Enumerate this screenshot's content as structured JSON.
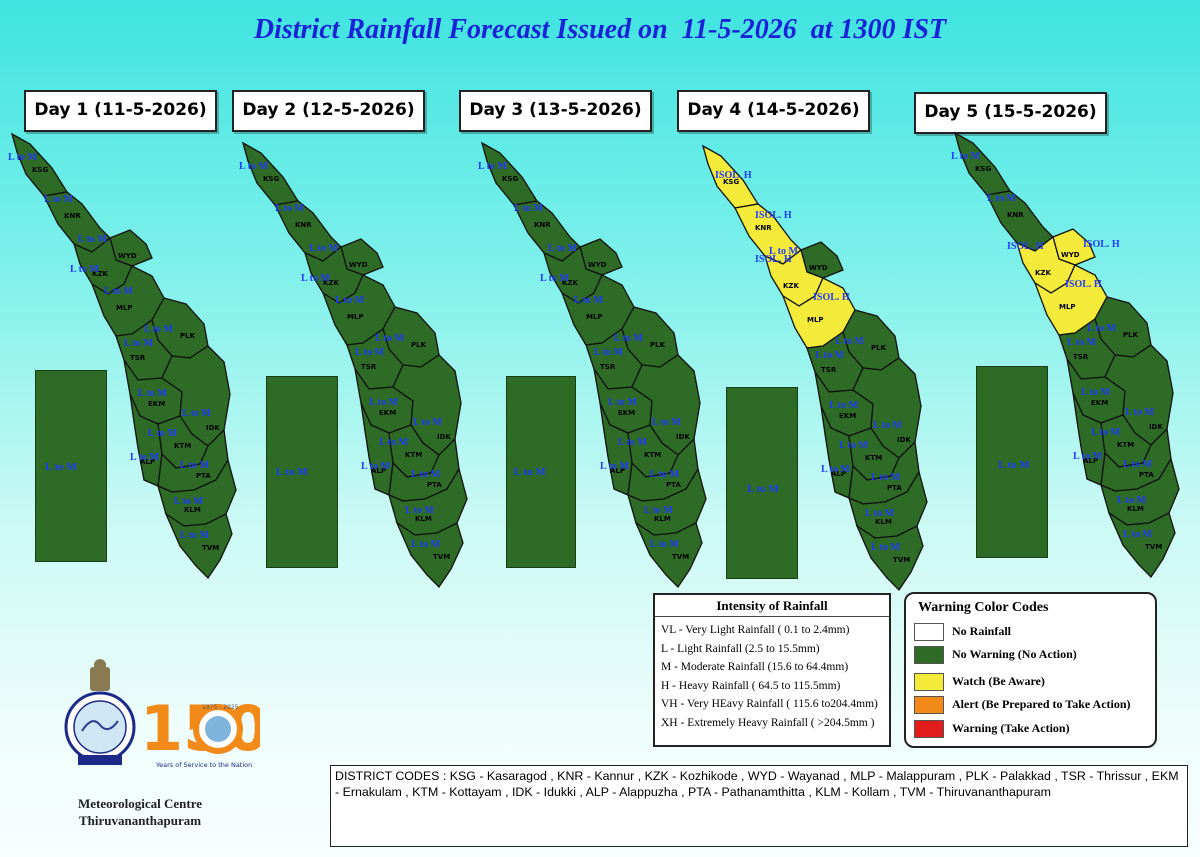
{
  "title": "District Rainfall Forecast Issued on  11-5-2026  at 1300 IST",
  "days": [
    {
      "label": "Day 1 (11-5-2026)",
      "rect_label": "L to M"
    },
    {
      "label": "Day 2 (12-5-2026)",
      "rect_label": "L to M"
    },
    {
      "label": "Day 3 (13-5-2026)",
      "rect_label": "L to M"
    },
    {
      "label": "Day 4 (14-5-2026)",
      "rect_label": "L to M"
    },
    {
      "label": "Day 5 (15-5-2026)",
      "rect_label": "L to M"
    }
  ],
  "district_codes": [
    "KSG",
    "KNR",
    "WYD",
    "KZK",
    "MLP",
    "PLK",
    "TSR",
    "EKM",
    "IDK",
    "ALP",
    "KTM",
    "PTA",
    "KLM",
    "TVM"
  ],
  "forecasts": {
    "day1": {
      "KSG": "L to M",
      "KNR": "L to M",
      "WYD": "L to M",
      "KZK": "L to M",
      "MLP": "L to M",
      "PLK": "L to M",
      "TSR": "L to M",
      "EKM": "L to M",
      "IDK": "L to M",
      "ALP": "L to M",
      "KTM": "L to M",
      "PTA": "L to M",
      "KLM": "L to M",
      "TVM": "L to M"
    },
    "day2": {
      "KSG": "L to M",
      "KNR": "L to M",
      "WYD": "L to M",
      "KZK": "L to M",
      "MLP": "L to M",
      "PLK": "L to M",
      "TSR": "L to M",
      "EKM": "L to M",
      "IDK": "L to M",
      "ALP": "L to M",
      "KTM": "L to M",
      "PTA": "L to M",
      "KLM": "L to M",
      "TVM": "L to M"
    },
    "day3": {
      "KSG": "L to M",
      "KNR": "L to M",
      "WYD": "L to M",
      "KZK": "L to M",
      "MLP": "L to M",
      "PLK": "L to M",
      "TSR": "L to M",
      "EKM": "L to M",
      "IDK": "L to M",
      "ALP": "L to M",
      "KTM": "L to M",
      "PTA": "L to M",
      "KLM": "L to M",
      "TVM": "L to M"
    },
    "day4": {
      "KSG": "ISOL. H",
      "KNR": "ISOL. H",
      "WYD": "L to M",
      "KZK": "ISOL. H",
      "MLP": "ISOL. H",
      "PLK": "L to M",
      "TSR": "L to M",
      "EKM": "L to M",
      "IDK": "L to M",
      "ALP": "L to M",
      "KTM": "L to M",
      "PTA": "L to M",
      "KLM": "L to M",
      "TVM": "L to M"
    },
    "day5": {
      "KSG": "L to M",
      "KNR": "L to M",
      "WYD": "ISOL. H",
      "KZK": "ISOL. H",
      "MLP": "ISOL. H",
      "PLK": "L to M",
      "TSR": "L to M",
      "EKM": "L to M",
      "IDK": "L to M",
      "ALP": "L to M",
      "KTM": "L to M",
      "PTA": "L to M",
      "KLM": "L to M",
      "TVM": "L to M"
    }
  },
  "warnings": {
    "day1": {
      "KSG": "green",
      "KNR": "green",
      "WYD": "green",
      "KZK": "green",
      "MLP": "green",
      "PLK": "green",
      "TSR": "green",
      "EKM": "green",
      "IDK": "green",
      "ALP": "green",
      "KTM": "green",
      "PTA": "green",
      "KLM": "green",
      "TVM": "green"
    },
    "day2": {
      "KSG": "green",
      "KNR": "green",
      "WYD": "green",
      "KZK": "green",
      "MLP": "green",
      "PLK": "green",
      "TSR": "green",
      "EKM": "green",
      "IDK": "green",
      "ALP": "green",
      "KTM": "green",
      "PTA": "green",
      "KLM": "green",
      "TVM": "green"
    },
    "day3": {
      "KSG": "green",
      "KNR": "green",
      "WYD": "green",
      "KZK": "green",
      "MLP": "green",
      "PLK": "green",
      "TSR": "green",
      "EKM": "green",
      "IDK": "green",
      "ALP": "green",
      "KTM": "green",
      "PTA": "green",
      "KLM": "green",
      "TVM": "green"
    },
    "day4": {
      "KSG": "yellow",
      "KNR": "yellow",
      "WYD": "green",
      "KZK": "yellow",
      "MLP": "yellow",
      "PLK": "green",
      "TSR": "green",
      "EKM": "green",
      "IDK": "green",
      "ALP": "green",
      "KTM": "green",
      "PTA": "green",
      "KLM": "green",
      "TVM": "green"
    },
    "day5": {
      "KSG": "green",
      "KNR": "green",
      "WYD": "yellow",
      "KZK": "yellow",
      "MLP": "yellow",
      "PLK": "green",
      "TSR": "green",
      "EKM": "green",
      "IDK": "green",
      "ALP": "green",
      "KTM": "green",
      "PTA": "green",
      "KLM": "green",
      "TVM": "green"
    }
  },
  "colors": {
    "green": "#2e6b26",
    "yellow": "#f4ea3a",
    "white": "#ffffff",
    "orange": "#f28a1a",
    "red": "#e21b1b",
    "title": "#1a22d8",
    "label": "#1f3bff"
  },
  "intensity": {
    "title": "Intensity of Rainfall",
    "items": [
      "VL - Very Light Rainfall ( 0.1 to 2.4mm)",
      "L  - Light Rainfall (2.5 to 15.5mm)",
      "M  - Moderate Rainfall (15.6 to 64.4mm)",
      "H  - Heavy Rainfall ( 64.5 to 115.5mm)",
      "VH - Very HEavy Rainfall ( 115.6 to204.4mm)",
      "XH - Extremely Heavy Rainfall ( >204.5mm )"
    ]
  },
  "warning_codes": {
    "title": "Warning Color Codes",
    "items": [
      {
        "label": "No Rainfall",
        "color": "#ffffff"
      },
      {
        "label": "No Warning (No Action)",
        "color": "#2e6b26"
      },
      {
        "label": "Watch (Be Aware)",
        "color": "#f4ea3a"
      },
      {
        "label": "Alert (Be Prepared to Take Action)",
        "color": "#f28a1a"
      },
      {
        "label": "Warning (Take Action)",
        "color": "#e21b1b"
      }
    ]
  },
  "district_code_legend": "DISTRICT CODES : KSG - Kasaragod , KNR - Kannur , KZK - Kozhikode , WYD - Wayanad , MLP - Malappuram , PLK - Palakkad , TSR - Thrissur , EKM - Ernakulam , KTM - Kottayam , IDK - Idukki , ALP - Alappuzha ,      PTA - Pathanamthitta , KLM - Kollam , TVM - Thiruvananthapuram",
  "logo": {
    "anniversary_number": "150",
    "badge_years": "1875 - 2025",
    "tagline": "Years of Service to the Nation"
  },
  "org": {
    "line1": "Meteorological Centre",
    "line2": "Thiruvananthapuram"
  }
}
